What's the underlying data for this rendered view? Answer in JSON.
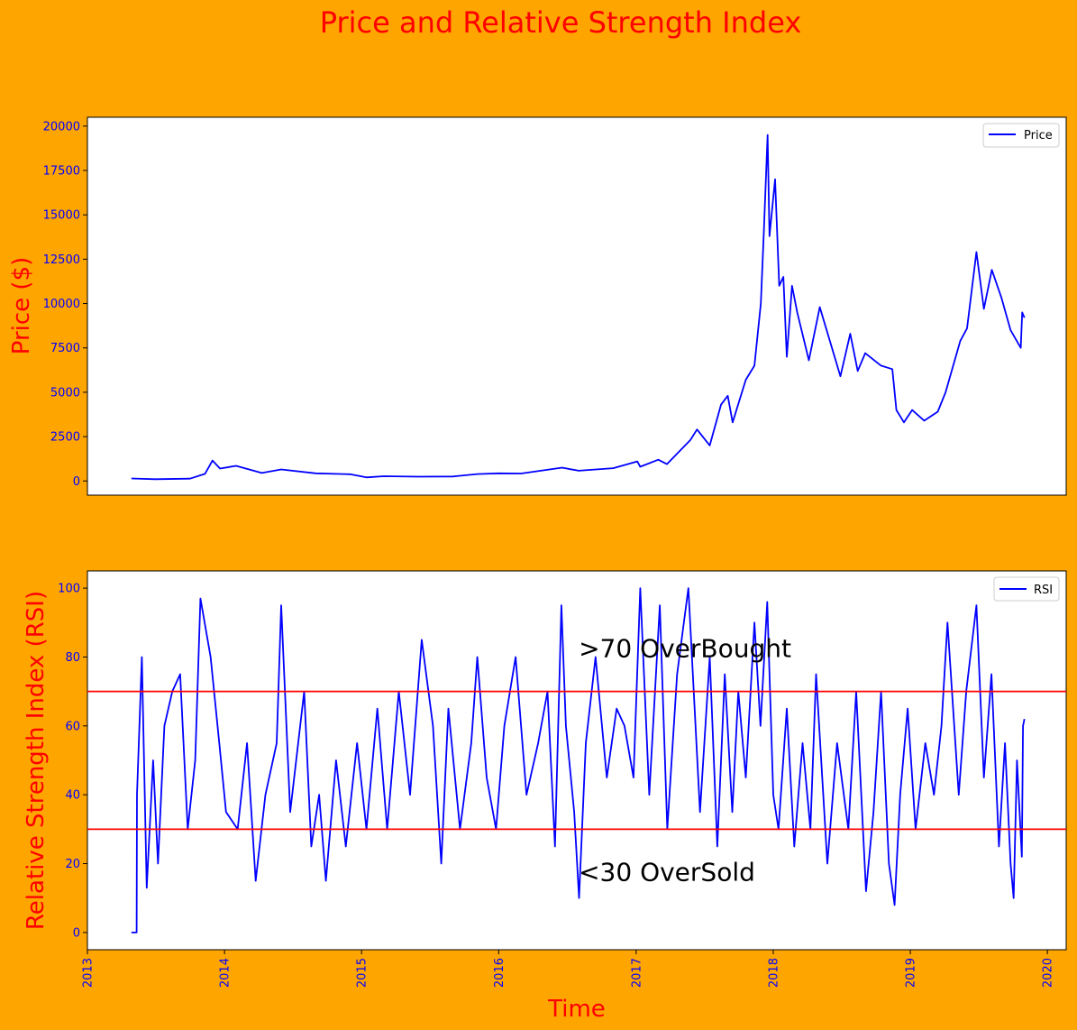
{
  "figure": {
    "title": "Price  and  Relative  Strength Index",
    "background_color": "#ffa500",
    "title_color": "#ff0000",
    "label_color": "#ff0000",
    "tick_color": "#0000ff"
  },
  "chart_data": [
    {
      "type": "line",
      "title": "",
      "xlabel": "",
      "ylabel": "Price ($)",
      "ylim": [
        -800,
        20500
      ],
      "xlim": [
        "2013-01-01",
        "2020-02-20"
      ],
      "yticks": [
        0,
        2500,
        5000,
        7500,
        10000,
        12500,
        15000,
        17500,
        20000
      ],
      "grid": false,
      "legend": "top-right",
      "series": [
        {
          "name": "Price",
          "color": "#0000ff",
          "x": [
            "2013-04-28",
            "2013-07-01",
            "2013-10-01",
            "2013-11-10",
            "2013-11-30",
            "2013-12-20",
            "2014-02-01",
            "2014-04-10",
            "2014-06-01",
            "2014-09-01",
            "2014-12-01",
            "2015-01-14",
            "2015-03-01",
            "2015-06-01",
            "2015-09-01",
            "2015-11-05",
            "2016-01-01",
            "2016-03-01",
            "2016-06-18",
            "2016-08-01",
            "2016-11-01",
            "2017-01-04",
            "2017-01-12",
            "2017-03-01",
            "2017-03-24",
            "2017-05-25",
            "2017-06-12",
            "2017-07-16",
            "2017-08-15",
            "2017-09-02",
            "2017-09-15",
            "2017-10-20",
            "2017-11-12",
            "2017-11-29",
            "2017-12-07",
            "2017-12-17",
            "2017-12-22",
            "2018-01-06",
            "2018-01-17",
            "2018-01-28",
            "2018-02-06",
            "2018-02-20",
            "2018-03-06",
            "2018-04-06",
            "2018-05-05",
            "2018-06-29",
            "2018-07-25",
            "2018-08-14",
            "2018-09-03",
            "2018-10-15",
            "2018-11-14",
            "2018-11-25",
            "2018-12-15",
            "2019-01-06",
            "2019-02-07",
            "2019-03-15",
            "2019-04-05",
            "2019-05-14",
            "2019-06-01",
            "2019-06-26",
            "2019-07-16",
            "2019-08-06",
            "2019-09-01",
            "2019-09-25",
            "2019-10-22",
            "2019-10-26",
            "2019-11-01"
          ],
          "y": [
            140,
            100,
            130,
            400,
            1150,
            700,
            850,
            450,
            650,
            430,
            380,
            200,
            270,
            240,
            250,
            390,
            430,
            420,
            750,
            580,
            720,
            1100,
            800,
            1200,
            950,
            2300,
            2900,
            2000,
            4300,
            4800,
            3300,
            5700,
            6500,
            10000,
            14000,
            19500,
            13800,
            17000,
            11000,
            11500,
            7000,
            11000,
            9500,
            6800,
            9800,
            5900,
            8300,
            6200,
            7200,
            6500,
            6300,
            4000,
            3300,
            4000,
            3400,
            3900,
            5000,
            7900,
            8600,
            12900,
            9700,
            11900,
            10300,
            8500,
            7500,
            9500,
            9200
          ]
        }
      ]
    },
    {
      "type": "line",
      "title": "",
      "xlabel": "Time",
      "ylabel": "Relative Strength Index (RSI)",
      "ylim": [
        -5,
        105
      ],
      "xlim": [
        "2013-01-01",
        "2020-02-20"
      ],
      "yticks": [
        0,
        20,
        40,
        60,
        80,
        100
      ],
      "xticks": [
        "2013",
        "2014",
        "2015",
        "2016",
        "2017",
        "2018",
        "2019",
        "2020"
      ],
      "grid": false,
      "legend": "top-right",
      "reference_lines": [
        {
          "y": 70,
          "color": "#ff0000"
        },
        {
          "y": 30,
          "color": "#ff0000"
        }
      ],
      "annotations": [
        {
          "text": ">70 OverBought",
          "x": "2016-08-01",
          "y": 80
        },
        {
          "text": "<30 OverSold",
          "x": "2016-08-01",
          "y": 15
        }
      ],
      "series": [
        {
          "name": "RSI",
          "color": "#0000ff",
          "x": [
            "2013-04-28",
            "2013-05-12",
            "2013-05-13",
            "2013-05-26",
            "2013-06-08",
            "2013-06-25",
            "2013-07-08",
            "2013-07-25",
            "2013-08-15",
            "2013-09-05",
            "2013-09-25",
            "2013-10-15",
            "2013-10-29",
            "2013-11-25",
            "2013-12-18",
            "2014-01-05",
            "2014-02-05",
            "2014-03-02",
            "2014-03-25",
            "2014-04-20",
            "2014-05-20",
            "2014-06-01",
            "2014-06-25",
            "2014-08-01",
            "2014-08-20",
            "2014-09-10",
            "2014-09-28",
            "2014-10-25",
            "2014-11-20",
            "2014-12-20",
            "2015-01-14",
            "2015-02-12",
            "2015-03-10",
            "2015-04-10",
            "2015-05-10",
            "2015-06-10",
            "2015-07-10",
            "2015-08-01",
            "2015-08-20",
            "2015-09-20",
            "2015-10-20",
            "2015-11-05",
            "2015-11-30",
            "2015-12-25",
            "2016-01-16",
            "2016-02-15",
            "2016-03-15",
            "2016-04-15",
            "2016-05-10",
            "2016-05-30",
            "2016-06-16",
            "2016-06-28",
            "2016-07-20",
            "2016-08-02",
            "2016-08-20",
            "2016-09-15",
            "2016-10-15",
            "2016-11-10",
            "2016-12-01",
            "2016-12-25",
            "2017-01-12",
            "2017-02-05",
            "2017-03-05",
            "2017-03-25",
            "2017-04-20",
            "2017-05-20",
            "2017-06-20",
            "2017-07-16",
            "2017-08-05",
            "2017-08-25",
            "2017-09-14",
            "2017-09-30",
            "2017-10-20",
            "2017-11-12",
            "2017-11-28",
            "2017-12-16",
            "2018-01-01",
            "2018-01-15",
            "2018-02-06",
            "2018-02-26",
            "2018-03-20",
            "2018-04-10",
            "2018-04-25",
            "2018-05-25",
            "2018-06-20",
            "2018-07-20",
            "2018-08-10",
            "2018-09-05",
            "2018-09-25",
            "2018-10-15",
            "2018-11-05",
            "2018-11-20",
            "2018-12-05",
            "2018-12-25",
            "2019-01-15",
            "2019-02-10",
            "2019-03-05",
            "2019-03-25",
            "2019-04-10",
            "2019-05-10",
            "2019-05-30",
            "2019-06-26",
            "2019-07-16",
            "2019-08-05",
            "2019-08-25",
            "2019-09-10",
            "2019-09-25",
            "2019-10-03",
            "2019-10-12",
            "2019-10-25",
            "2019-10-28",
            "2019-11-01"
          ],
          "y": [
            0,
            0,
            40,
            80,
            13,
            50,
            20,
            60,
            70,
            75,
            30,
            50,
            97,
            80,
            55,
            35,
            30,
            55,
            15,
            40,
            55,
            95,
            35,
            70,
            25,
            40,
            15,
            50,
            25,
            55,
            30,
            65,
            30,
            70,
            40,
            85,
            60,
            20,
            65,
            30,
            55,
            80,
            45,
            30,
            60,
            80,
            40,
            55,
            70,
            25,
            95,
            60,
            35,
            10,
            55,
            80,
            45,
            65,
            60,
            45,
            100,
            40,
            95,
            30,
            75,
            100,
            35,
            80,
            25,
            75,
            35,
            70,
            45,
            90,
            60,
            96,
            40,
            30,
            65,
            25,
            55,
            30,
            75,
            20,
            55,
            30,
            70,
            12,
            35,
            70,
            20,
            8,
            40,
            65,
            30,
            55,
            40,
            60,
            90,
            40,
            70,
            95,
            45,
            75,
            25,
            55,
            20,
            10,
            50,
            22,
            60,
            62
          ]
        }
      ]
    }
  ]
}
